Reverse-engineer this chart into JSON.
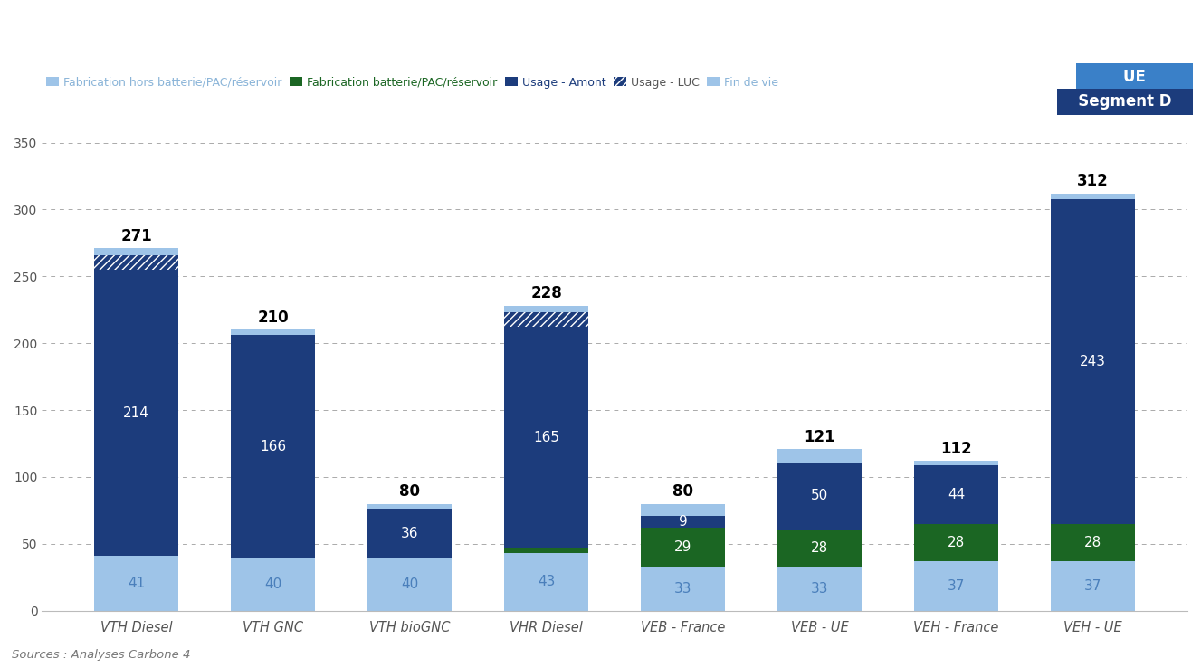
{
  "categories": [
    "VTH Diesel",
    "VTH GNC",
    "VTH bioGNC",
    "VHR Diesel",
    "VEB - France",
    "VEB - UE",
    "VEH - France",
    "VEH - UE"
  ],
  "totals": [
    271,
    210,
    80,
    228,
    80,
    121,
    112,
    312
  ],
  "fab_hors": [
    41,
    40,
    40,
    43,
    33,
    33,
    37,
    37
  ],
  "fab_bat": [
    0,
    0,
    0,
    4,
    29,
    28,
    28,
    28
  ],
  "usage_amont": [
    214,
    166,
    36,
    165,
    9,
    50,
    44,
    243
  ],
  "usage_luc": [
    11,
    0,
    0,
    11,
    0,
    0,
    0,
    0
  ],
  "fin_de_vie": [
    5,
    4,
    4,
    5,
    9,
    10,
    3,
    4
  ],
  "color_fab_hors": "#9ec4e8",
  "color_fab_bat": "#1b6623",
  "color_usage_amont": "#1c3c7c",
  "color_fin_de_vie": "#9ec4e8",
  "ylim": [
    0,
    370
  ],
  "yticks": [
    0,
    50,
    100,
    150,
    200,
    250,
    300,
    350
  ],
  "legend_labels": [
    "Fabrication hors batterie/PAC/réservoir",
    "Fabrication batterie/PAC/réservoir",
    "Usage - Amont",
    "Usage - LUC",
    "Fin de vie"
  ],
  "legend_text_colors": [
    "#8ab4d8",
    "#1b6623",
    "#1c3c7c",
    "#555555",
    "#8ab4d8"
  ],
  "source_text": "Sources : Analyses Carbone 4",
  "ue_label": "UE",
  "segment_label": "Segment D",
  "bg_color": "#ffffff",
  "bar_width": 0.62,
  "title_box_ue_color": "#3a80c8",
  "title_box_seg_color": "#1c3c7c",
  "fab_hors_label_color": "#4a7fbb",
  "usage_amont_label_color": "white",
  "total_label_fontsize": 12,
  "inner_label_fontsize": 11,
  "grid_color": "#aaaaaa",
  "grid_linestyle": "--",
  "axis_text_color": "#555555"
}
